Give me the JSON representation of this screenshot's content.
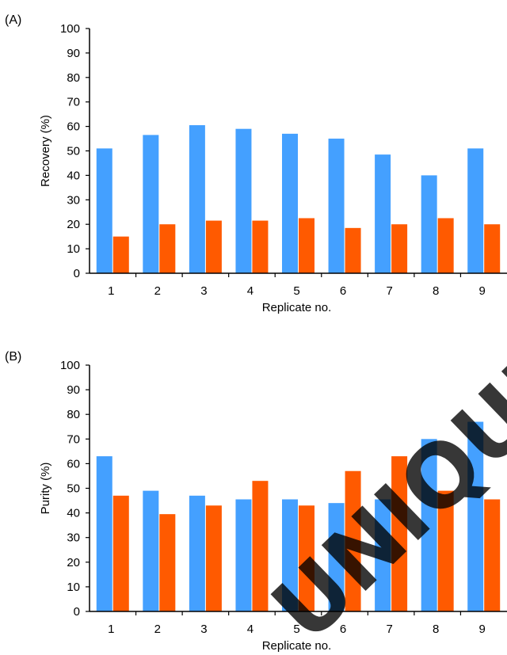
{
  "colors": {
    "series1": "#44a0ff",
    "series2": "#ff5a00",
    "axis": "#000000",
    "watermark": "#000000"
  },
  "watermark": {
    "text": "UNIQUE P"
  },
  "chart_data": [
    {
      "type": "bar",
      "panel_label": "(A)",
      "categories": [
        "1",
        "2",
        "3",
        "4",
        "5",
        "6",
        "7",
        "8",
        "9"
      ],
      "series": [
        {
          "values": [
            51,
            56.5,
            60.5,
            59,
            57,
            55,
            48.5,
            40,
            51
          ]
        },
        {
          "values": [
            15,
            20,
            21.5,
            21.5,
            22.5,
            18.5,
            20,
            22.5,
            20
          ]
        }
      ],
      "xlabel": "Replicate no.",
      "ylabel": "Recovery (%)",
      "ylim": [
        0,
        100
      ],
      "yticks": [
        "0",
        "10",
        "20",
        "30",
        "40",
        "50",
        "60",
        "70",
        "80",
        "90",
        "100"
      ],
      "grid": false,
      "legend": "none"
    },
    {
      "type": "bar",
      "panel_label": "(B)",
      "categories": [
        "1",
        "2",
        "3",
        "4",
        "5",
        "6",
        "7",
        "8",
        "9"
      ],
      "series": [
        {
          "values": [
            63,
            49,
            47,
            45.5,
            45.5,
            44,
            45.5,
            70,
            77
          ]
        },
        {
          "values": [
            47,
            39.5,
            43,
            53,
            43,
            57,
            63,
            49,
            45.5
          ]
        }
      ],
      "xlabel": "Replicate no.",
      "ylabel": "Purity (%)",
      "ylim": [
        0,
        100
      ],
      "yticks": [
        "0",
        "10",
        "20",
        "30",
        "40",
        "50",
        "60",
        "70",
        "80",
        "90",
        "100"
      ],
      "grid": false,
      "legend": "none"
    }
  ]
}
